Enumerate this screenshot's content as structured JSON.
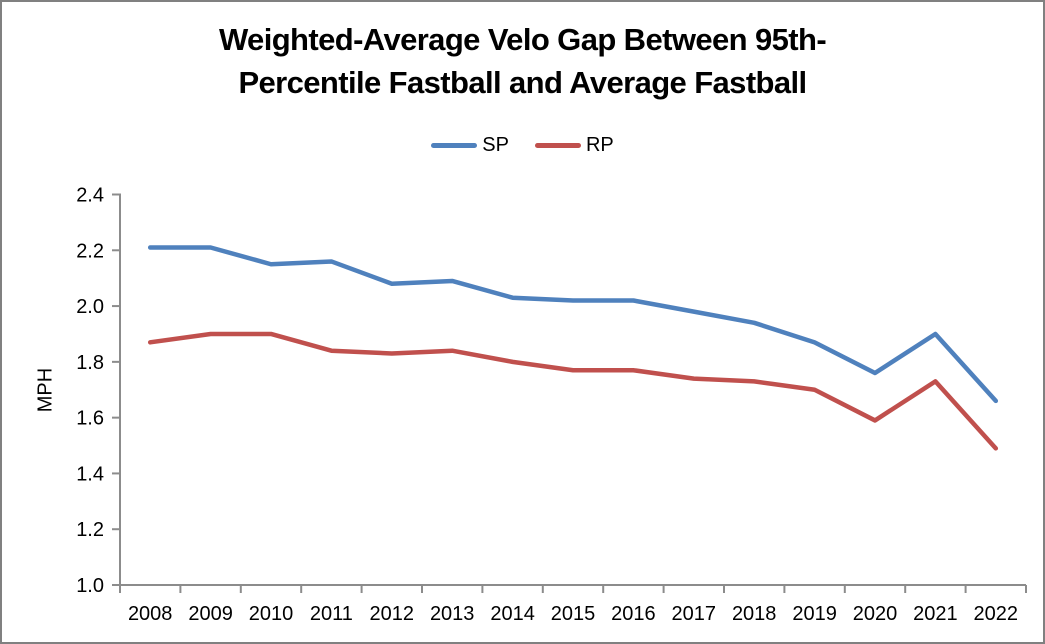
{
  "title": {
    "line1": "Weighted-Average Velo Gap Between 95th-",
    "line2": "Percentile Fastball and Average Fastball"
  },
  "chart_data": {
    "type": "line",
    "title": "Weighted-Average Velo Gap Between 95th-Percentile Fastball and Average Fastball",
    "categories": [
      "2008",
      "2009",
      "2010",
      "2011",
      "2012",
      "2013",
      "2014",
      "2015",
      "2016",
      "2017",
      "2018",
      "2019",
      "2020",
      "2021",
      "2022"
    ],
    "series": [
      {
        "name": "SP",
        "color": "#4F81BD",
        "values": [
          2.21,
          2.21,
          2.15,
          2.16,
          2.08,
          2.09,
          2.03,
          2.02,
          2.02,
          1.98,
          1.94,
          1.87,
          1.76,
          1.9,
          1.66
        ]
      },
      {
        "name": "RP",
        "color": "#C0504D",
        "values": [
          1.87,
          1.9,
          1.9,
          1.84,
          1.83,
          1.84,
          1.8,
          1.77,
          1.77,
          1.74,
          1.73,
          1.7,
          1.59,
          1.73,
          1.49
        ]
      }
    ],
    "xlabel": "",
    "ylabel": "MPH",
    "ylim": [
      1.0,
      2.4
    ],
    "ytick_step": 0.2,
    "yticks": [
      "2.4",
      "2.2",
      "2.0",
      "1.8",
      "1.6",
      "1.4",
      "1.2",
      "1.0"
    ],
    "grid": false,
    "legend_position": "top-center",
    "axis_color": "#8C8C8C",
    "text_color": "#000000",
    "background": "#FFFFFF",
    "border_color": "#808080"
  }
}
